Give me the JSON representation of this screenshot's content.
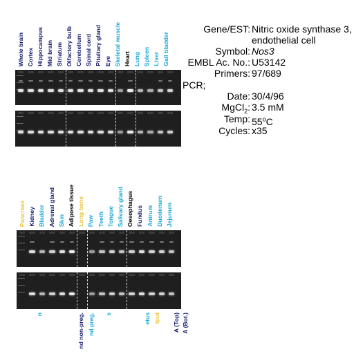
{
  "info": {
    "gene_label": "Gene/EST:",
    "gene_value_line1": "Nitric oxide synthase 3,",
    "gene_value_line2": "endothelial cell",
    "symbol_label": "Symbol:",
    "symbol_value": "Nos3",
    "embl_label": "EMBL Ac. No.:",
    "embl_value": "U53142",
    "primers_label": "Primers:",
    "primers_value": "97/689",
    "pcr_label": "PCR;",
    "date_label": "Date:",
    "date_value": "30/4/96",
    "mgcl_label_pre": "MgCl",
    "mgcl_label_sub": "2",
    "mgcl_label_post": ":",
    "mgcl_value": "3.5 mM",
    "temp_label": "Temp:",
    "temp_value_num": "55",
    "temp_value_sup": "o",
    "temp_value_unit": "C",
    "cycles_label": "Cycles:",
    "cycles_value": "x35"
  },
  "panel_top": {
    "lanes": [
      {
        "label": "Whole brain",
        "color": "#141a6e",
        "intensity": 0.9
      },
      {
        "label": "Cortex",
        "color": "#141a6e",
        "intensity": 0.9
      },
      {
        "label": "Hippocampus",
        "color": "#141a6e",
        "intensity": 0.9
      },
      {
        "label": "Mid brain",
        "color": "#141a6e",
        "intensity": 0.9
      },
      {
        "label": "Striatum",
        "color": "#141a6e",
        "intensity": 0.9
      },
      {
        "label": "Olfactory bulb",
        "color": "#141a6e",
        "intensity": 0.9
      },
      {
        "label": "Cerebellum",
        "color": "#141a6e",
        "intensity": 0.9
      },
      {
        "label": "Spinal cord",
        "color": "#141a6e",
        "intensity": 0.9
      },
      {
        "label": "Pituitary gland",
        "color": "#141a6e",
        "intensity": 0.9
      },
      {
        "label": "Eye",
        "color": "#141a6e",
        "intensity": 0.9
      },
      {
        "label": "Skeletal muscle",
        "color": "#1aa8d4",
        "intensity": 0.4
      },
      {
        "label": "Heart",
        "color": "#000000",
        "intensity": 1.0
      },
      {
        "label": "Lung",
        "color": "#1aa8d4",
        "intensity": 0.6
      },
      {
        "label": "Spleen",
        "color": "#1aa8d4",
        "intensity": 0.5
      },
      {
        "label": "Liver",
        "color": "#1aa8d4",
        "intensity": 0.7
      },
      {
        "label": "Gall bladder",
        "color": "#1aa8d4",
        "intensity": 0.8
      }
    ],
    "separators_after": [
      4,
      9,
      11
    ]
  },
  "panel_bottom": {
    "lanes": [
      {
        "label": "Pancreas",
        "color": "#e8c43a",
        "intensity": 0.0
      },
      {
        "label": "Kidney",
        "color": "#141a6e",
        "intensity": 0.9
      },
      {
        "label": "Bladder",
        "color": "#1aa8d4",
        "intensity": 0.6
      },
      {
        "label": "Adrenal gland",
        "color": "#141a6e",
        "intensity": 0.8
      },
      {
        "label": "Skin",
        "color": "#1aa8d4",
        "intensity": 0.9
      },
      {
        "label": "Adipose tissue",
        "color": "#000000",
        "intensity": 1.0
      },
      {
        "label": "Long bone",
        "color": "#e8c43a",
        "intensity": 0.0
      },
      {
        "label": "Paw",
        "color": "#1aa8d4",
        "intensity": 0.4
      },
      {
        "label": "Teeth",
        "color": "#1aa8d4",
        "intensity": 0.7
      },
      {
        "label": "Tongue",
        "color": "#1aa8d4",
        "intensity": 0.8
      },
      {
        "label": "Salivary gland",
        "color": "#1aa8d4",
        "intensity": 0.7
      },
      {
        "label": "Oesophagus",
        "color": "#000000",
        "intensity": 0.8
      },
      {
        "label": "Fundus",
        "color": "#141a6e",
        "intensity": 0.9
      },
      {
        "label": "Antrum",
        "color": "#1aa8d4",
        "intensity": 0.8
      },
      {
        "label": "Duodenum",
        "color": "#1aa8d4",
        "intensity": 0.8
      },
      {
        "label": "Jejunum",
        "color": "#1aa8d4",
        "intensity": 0.7
      }
    ],
    "separators_after": [
      5,
      6,
      10
    ]
  },
  "panel_cut": {
    "lanes": [
      {
        "label": "n",
        "color": "#1aa8d4"
      },
      {
        "label": "nd non-preg.",
        "color": "#141a6e"
      },
      {
        "label": "nd preg.",
        "color": "#1aa8d4"
      },
      {
        "label": "s",
        "color": "#1aa8d4"
      },
      {
        "label": "etus",
        "color": "#1aa8d4"
      },
      {
        "label": "tput",
        "color": "#e8c43a"
      },
      {
        "label": "A (Top)",
        "color": "#141a6e"
      },
      {
        "label": "A (Bot.)",
        "color": "#141a6e"
      }
    ]
  }
}
